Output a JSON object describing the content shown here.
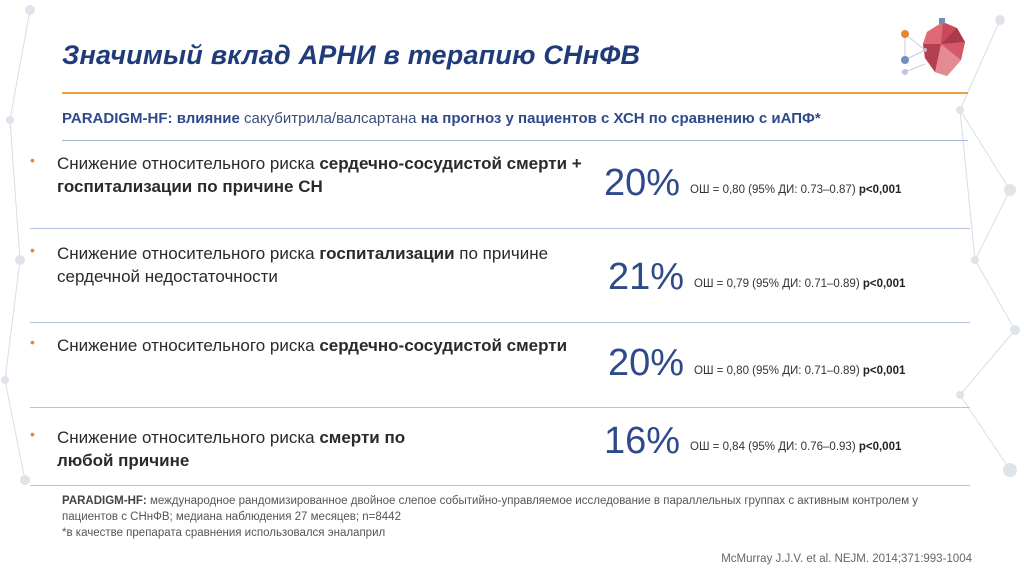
{
  "title": "Значимый вклад АРНИ в терапию СНнФВ",
  "subtitle": {
    "part1": "PARADIGM-HF: влияние",
    "part2": " сакубитрила/валсартана ",
    "part3": "на прогноз у пациентов с ХСН по сравнению с иАПФ*"
  },
  "rows": [
    {
      "text_normal": "Снижение относительного риска ",
      "text_bold": "сердечно-сосудистой смерти + госпитализации по причине СН",
      "text_tail": "",
      "pct": "20%",
      "stat_normal": "ОШ = 0,80 (95% ДИ: 0.73–0.87) ",
      "stat_bold": "p<0,001"
    },
    {
      "text_normal": "Снижение относительного риска ",
      "text_bold": "госпитализации",
      "text_tail": " по причине сердечной недостаточности",
      "pct": "21%",
      "stat_normal": "ОШ = 0,79 (95% ДИ: 0.71–0.89) ",
      "stat_bold": "p<0,001"
    },
    {
      "text_normal": "Снижение относительного риска ",
      "text_bold": "сердечно-сосудистой смерти",
      "text_tail": "",
      "pct": "20%",
      "stat_normal": "ОШ = 0,80 (95% ДИ: 0.71–0.89) ",
      "stat_bold": "p<0,001"
    },
    {
      "text_normal": "Снижение относительного риска ",
      "text_bold": "смерти по любой причине",
      "text_tail": "",
      "pct": "16%",
      "stat_normal": "ОШ = 0,84 (95% ДИ: 0.76–0.93) ",
      "stat_bold": "p<0,001"
    }
  ],
  "footnote": {
    "bold": "PARADIGM-HF:",
    "text": " международное рандомизированное двойное слепое событийно-управляемое исследование в параллельных группах с активным контролем у пациентов с СНнФВ; медиана наблюдения 27 месяцев; n=8442",
    "asterisk": "*в качестве препарата сравнения  использовался эналаприл"
  },
  "citation": "McMurray J.J.V. et al. NEJM. 2014;371:993-1004",
  "colors": {
    "title": "#1f3b7a",
    "accent_rule": "#f0a03a",
    "bullet": "#e08a2a",
    "pct": "#2f4a8a"
  },
  "icons": {
    "logo": "heart-network-logo",
    "background": "molecule-network-pattern"
  }
}
